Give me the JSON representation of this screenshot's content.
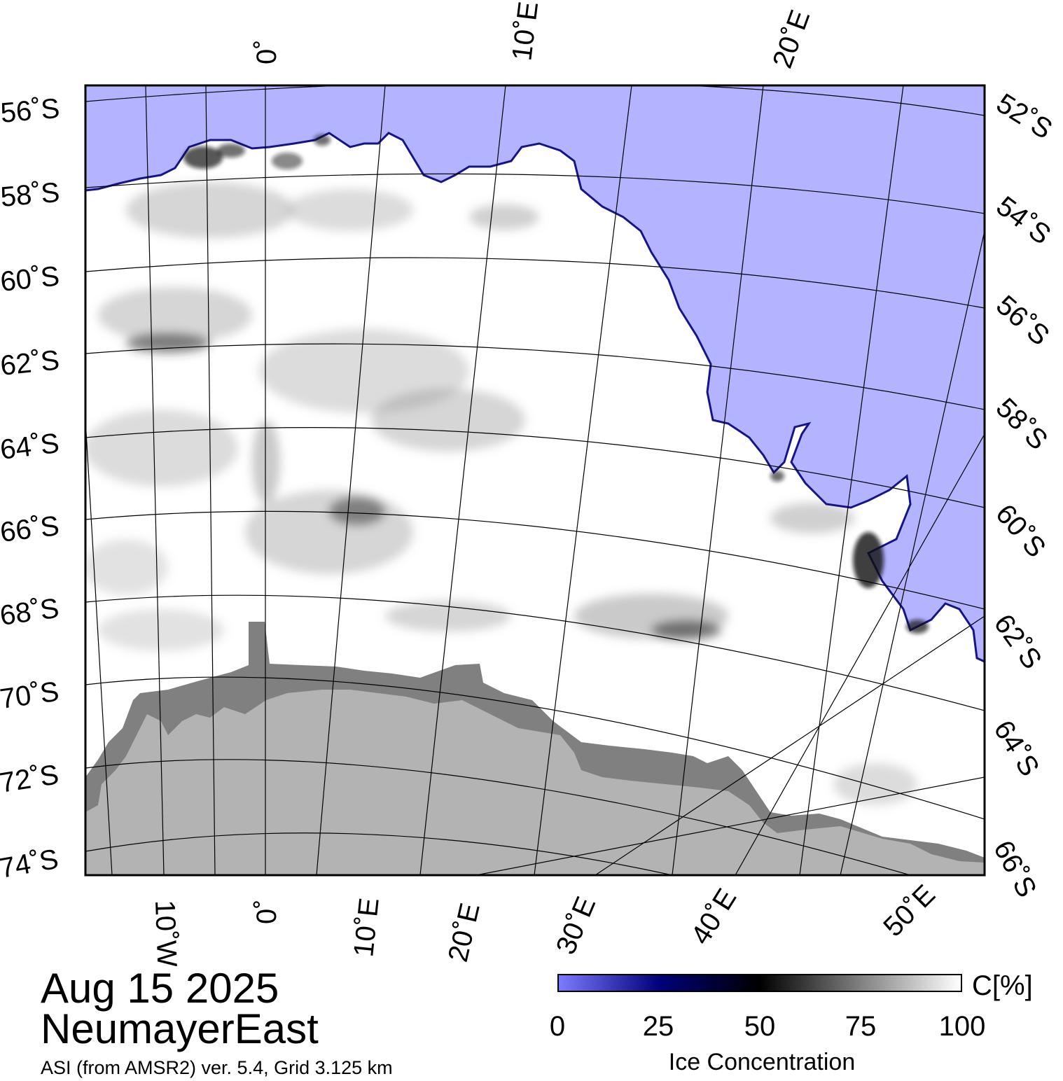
{
  "map": {
    "date": "Aug 15 2025",
    "region": "NeumayerEast",
    "source": "ASI (from AMSR2) ver. 5.4,  Grid 3.125 km",
    "colors": {
      "open_water": "#b3b3ff",
      "ice_shelf": "#808080",
      "land": "#b3b3b3",
      "sea_ice": "#ffffff"
    },
    "top_longitude_labels": [
      "0˚",
      "10˚E",
      "20˚E"
    ],
    "bottom_longitude_labels": [
      "10˚W",
      "0˚",
      "10˚E",
      "20˚E",
      "30˚E",
      "40˚E",
      "50˚E"
    ],
    "left_latitude_labels": [
      "56˚S",
      "58˚S",
      "60˚S",
      "62˚S",
      "64˚S",
      "66˚S",
      "68˚S",
      "70˚S",
      "72˚S",
      "74˚S"
    ],
    "right_latitude_labels": [
      "52˚S",
      "54˚S",
      "56˚S",
      "58˚S",
      "60˚S",
      "62˚S",
      "64˚S",
      "66˚S"
    ]
  },
  "colorbar": {
    "title": "Ice Concentration",
    "unit": "C[%]",
    "ticks": [
      "0",
      "25",
      "50",
      "75",
      "100"
    ],
    "range": [
      0,
      100
    ],
    "stops": [
      "#7b7bff",
      "#00007a",
      "#000000",
      "#808080",
      "#ffffff"
    ]
  }
}
